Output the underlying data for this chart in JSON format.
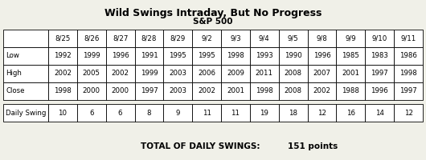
{
  "title": "Wild Swings Intraday, But No Progress",
  "subtitle": "S&P 500",
  "dates": [
    "8/25",
    "8/26",
    "8/27",
    "8/28",
    "8/29",
    "9/2",
    "9/3",
    "9/4",
    "9/5",
    "9/8",
    "9/9",
    "9/10",
    "9/11"
  ],
  "rows": {
    "Low": [
      1992,
      1999,
      1996,
      1991,
      1995,
      1995,
      1998,
      1993,
      1990,
      1996,
      1985,
      1983,
      1986
    ],
    "High": [
      2002,
      2005,
      2002,
      1999,
      2003,
      2006,
      2009,
      2011,
      2008,
      2007,
      2001,
      1997,
      1998
    ],
    "Close": [
      1998,
      2000,
      2000,
      1997,
      2003,
      2002,
      2001,
      1998,
      2008,
      2002,
      1988,
      1996,
      1997
    ]
  },
  "daily_swing": [
    10,
    6,
    6,
    8,
    9,
    11,
    11,
    19,
    18,
    12,
    16,
    14,
    12
  ],
  "total_label": "TOTAL OF DAILY SWINGS:",
  "total_value": "151 points",
  "bg_color": "#f0f0e8",
  "swing_row_label": "Daily Swing",
  "title_fontsize": 9,
  "subtitle_fontsize": 7.5,
  "cell_fontsize": 6.2,
  "total_fontsize": 7.5
}
